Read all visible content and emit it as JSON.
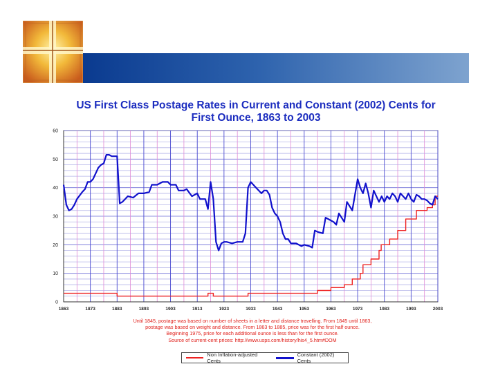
{
  "slide": {
    "accent_color": "#1a4a9c",
    "logo_icon": "golden-cross-icon"
  },
  "chart_data": {
    "type": "line",
    "title_line1": "US First Class Postage Rates in Current and Constant (2002) Cents for",
    "title_line2": "First Ounce, 1863 to 2003",
    "xlim": [
      1863,
      2003
    ],
    "ylim": [
      0,
      60
    ],
    "x_ticks": [
      "1863",
      "1873",
      "1883",
      "1893",
      "1903",
      "1913",
      "1923",
      "1933",
      "1943",
      "1953",
      "1963",
      "1973",
      "1983",
      "1993",
      "2003"
    ],
    "y_ticks": [
      "0",
      "10",
      "20",
      "30",
      "40",
      "50",
      "60"
    ],
    "grid": true,
    "legend_position": "bottom",
    "series": [
      {
        "name": "Non Inflation-adjusted  Cents",
        "color": "#ee2222",
        "points": [
          [
            1863,
            3
          ],
          [
            1883,
            3
          ],
          [
            1883,
            2
          ],
          [
            1917,
            2
          ],
          [
            1917,
            3
          ],
          [
            1919,
            3
          ],
          [
            1919,
            2
          ],
          [
            1932,
            2
          ],
          [
            1932,
            3
          ],
          [
            1958,
            3
          ],
          [
            1958,
            4
          ],
          [
            1963,
            4
          ],
          [
            1963,
            5
          ],
          [
            1968,
            5
          ],
          [
            1968,
            6
          ],
          [
            1971,
            6
          ],
          [
            1971,
            8
          ],
          [
            1974,
            8
          ],
          [
            1974,
            10
          ],
          [
            1975,
            10
          ],
          [
            1975,
            13
          ],
          [
            1978,
            13
          ],
          [
            1978,
            15
          ],
          [
            1981,
            15
          ],
          [
            1981,
            18
          ],
          [
            1981.8,
            18
          ],
          [
            1981.8,
            20
          ],
          [
            1985,
            20
          ],
          [
            1985,
            22
          ],
          [
            1988,
            22
          ],
          [
            1988,
            25
          ],
          [
            1991,
            25
          ],
          [
            1991,
            29
          ],
          [
            1995,
            29
          ],
          [
            1995,
            32
          ],
          [
            1999,
            32
          ],
          [
            1999,
            33
          ],
          [
            2001,
            33
          ],
          [
            2001,
            34
          ],
          [
            2002,
            34
          ],
          [
            2002,
            37
          ],
          [
            2003,
            37
          ]
        ]
      },
      {
        "name": "Constant (2002) Cents",
        "color": "#1111cc",
        "points": [
          [
            1863,
            41
          ],
          [
            1864,
            34
          ],
          [
            1865,
            32
          ],
          [
            1866,
            32.5
          ],
          [
            1867,
            34
          ],
          [
            1868,
            36
          ],
          [
            1870,
            38.5
          ],
          [
            1871,
            39.5
          ],
          [
            1872,
            42
          ],
          [
            1873,
            42
          ],
          [
            1874,
            43
          ],
          [
            1876,
            47
          ],
          [
            1877,
            48
          ],
          [
            1878,
            48.5
          ],
          [
            1879,
            51.5
          ],
          [
            1880,
            51.5
          ],
          [
            1881,
            51
          ],
          [
            1882,
            51
          ],
          [
            1883,
            51
          ],
          [
            1884,
            34.5
          ],
          [
            1885,
            35
          ],
          [
            1886,
            36
          ],
          [
            1887,
            37
          ],
          [
            1889,
            36.5
          ],
          [
            1891,
            38
          ],
          [
            1893,
            38
          ],
          [
            1895,
            38.5
          ],
          [
            1896,
            41
          ],
          [
            1898,
            41
          ],
          [
            1900,
            42
          ],
          [
            1902,
            42
          ],
          [
            1903,
            41
          ],
          [
            1905,
            41
          ],
          [
            1906,
            39
          ],
          [
            1908,
            39
          ],
          [
            1909,
            39.5
          ],
          [
            1911,
            37
          ],
          [
            1913,
            38
          ],
          [
            1914,
            36
          ],
          [
            1916,
            36
          ],
          [
            1917,
            32.5
          ],
          [
            1918,
            42
          ],
          [
            1919,
            36
          ],
          [
            1920,
            21
          ],
          [
            1921,
            18
          ],
          [
            1922,
            20.5
          ],
          [
            1923,
            21
          ],
          [
            1924,
            21
          ],
          [
            1926,
            20.5
          ],
          [
            1928,
            21
          ],
          [
            1930,
            21
          ],
          [
            1931,
            24
          ],
          [
            1932,
            40
          ],
          [
            1933,
            42
          ],
          [
            1935,
            40
          ],
          [
            1937,
            38
          ],
          [
            1938,
            39
          ],
          [
            1939,
            39
          ],
          [
            1940,
            37.5
          ],
          [
            1941,
            33
          ],
          [
            1942,
            31
          ],
          [
            1943,
            30
          ],
          [
            1944,
            28
          ],
          [
            1945,
            24
          ],
          [
            1946,
            22
          ],
          [
            1947,
            22
          ],
          [
            1948,
            20.5
          ],
          [
            1950,
            20.5
          ],
          [
            1952,
            19.5
          ],
          [
            1953,
            20
          ],
          [
            1955,
            19.5
          ],
          [
            1956,
            19
          ],
          [
            1957,
            25
          ],
          [
            1958,
            24.5
          ],
          [
            1960,
            24
          ],
          [
            1961,
            29.5
          ],
          [
            1962,
            29
          ],
          [
            1964,
            28
          ],
          [
            1965,
            27
          ],
          [
            1966,
            31
          ],
          [
            1968,
            28
          ],
          [
            1969,
            35
          ],
          [
            1970,
            33.5
          ],
          [
            1971,
            32
          ],
          [
            1973,
            43
          ],
          [
            1974,
            40
          ],
          [
            1975,
            38
          ],
          [
            1976,
            41.5
          ],
          [
            1977,
            38
          ],
          [
            1978,
            33
          ],
          [
            1979,
            39
          ],
          [
            1981,
            35
          ],
          [
            1982,
            37
          ],
          [
            1983,
            35
          ],
          [
            1984,
            37
          ],
          [
            1985,
            36
          ],
          [
            1986,
            38
          ],
          [
            1987,
            37
          ],
          [
            1988,
            35
          ],
          [
            1989,
            38
          ],
          [
            1990,
            37
          ],
          [
            1991,
            36
          ],
          [
            1992,
            38
          ],
          [
            1993,
            36
          ],
          [
            1994,
            35
          ],
          [
            1995,
            37.5
          ],
          [
            1996,
            37
          ],
          [
            1997,
            36
          ],
          [
            1998,
            36
          ],
          [
            1999,
            35.5
          ],
          [
            2000,
            34.5
          ],
          [
            2001,
            34
          ],
          [
            2002,
            37
          ],
          [
            2003,
            36
          ]
        ]
      }
    ],
    "notes": [
      "Until 1845, postage was based on number of sheets in a letter and distance travelling.  From 1845 until 1863,",
      "postage was based on weight and distance.  From 1863 to 1885, price was for the first half ounce.",
      "Beginning 1975, price for each additional ounce is less than for the first ounce.",
      "Source of current-cent prices:  http://www.usps.com/history/his4_5.htm#DOM"
    ]
  }
}
